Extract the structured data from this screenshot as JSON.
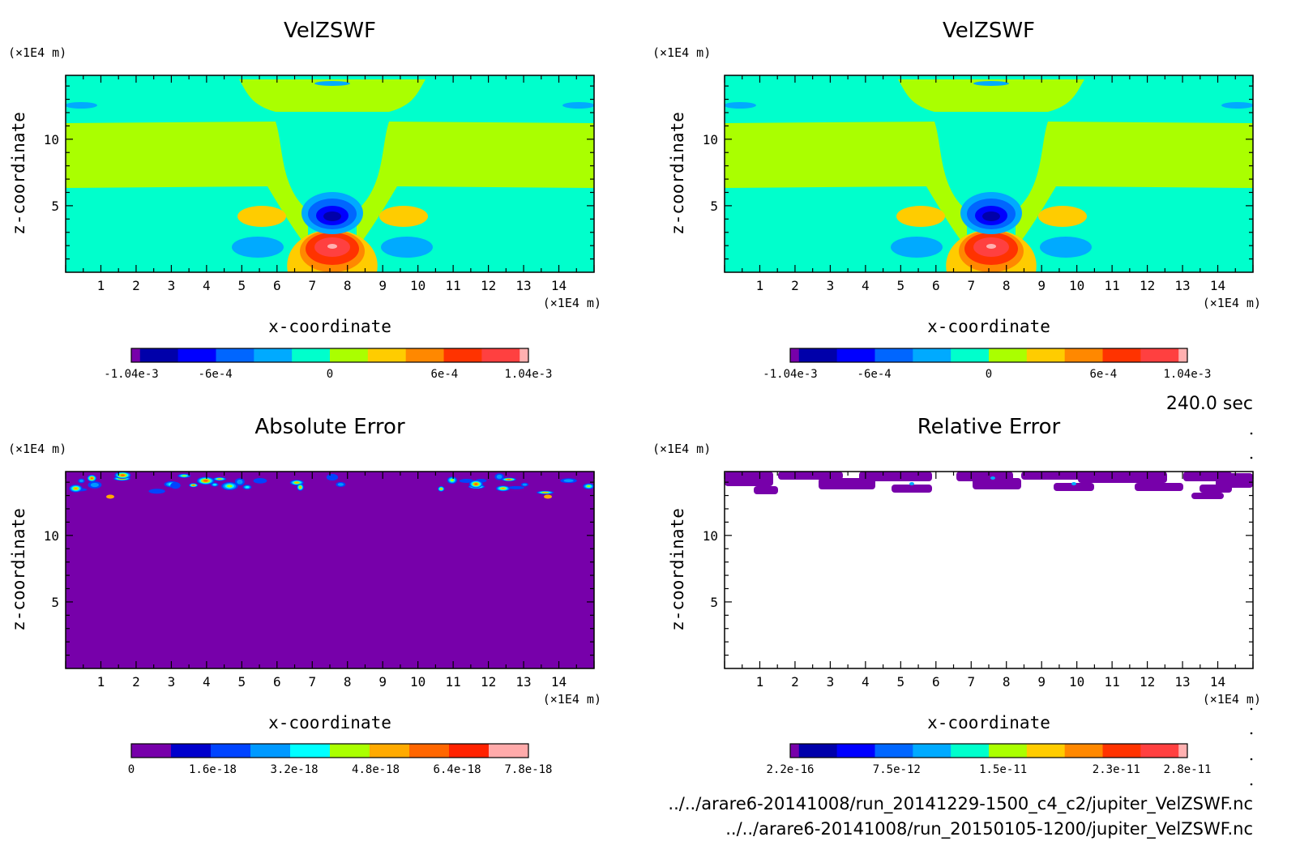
{
  "time_label": "240.0 sec",
  "footer": {
    "file1": "../../arare6-20141008/run_20141229-1500_c4_c2/jupiter_VelZSWF.nc",
    "file2": "../../arare6-20141008/run_20150105-1200/jupiter_VelZSWF.nc"
  },
  "colors": {
    "velocity": [
      "#7700aa",
      "#0000aa",
      "#0000ff",
      "#0066ff",
      "#00aaff",
      "#00ffcc",
      "#aaff00",
      "#ffcc00",
      "#ff8800",
      "#ff3300",
      "#ff4040",
      "#ffb0b0"
    ],
    "abs_error": [
      "#7700aa",
      "#0000cc",
      "#0044ff",
      "#0099ff",
      "#00ffff",
      "#aaff00",
      "#ffaa00",
      "#ff6600",
      "#ff2200",
      "#ffaaaa"
    ],
    "rel_error": [
      "#7700aa",
      "#0000aa",
      "#0000ff",
      "#0066ff",
      "#00aaff",
      "#00ffcc",
      "#aaff00",
      "#ffcc00",
      "#ff8800",
      "#ff3300",
      "#ff4040",
      "#ffb0b0"
    ]
  },
  "chart_data": [
    {
      "type": "heatmap",
      "title": "VelZSWF",
      "xlabel": "x-coordinate",
      "ylabel": "z-coordinate",
      "x_unit": "(×1E4 m)",
      "y_unit": "(×1E4 m)",
      "xlim": [
        0,
        15
      ],
      "ylim": [
        0,
        14.8
      ],
      "x_ticks": [
        1,
        2,
        3,
        4,
        5,
        6,
        7,
        8,
        9,
        10,
        11,
        12,
        13,
        14
      ],
      "y_ticks": [
        5,
        10
      ],
      "colorbar_range": [
        -0.00104,
        0.00104
      ],
      "colorbar_labels": [
        "-1.04e-3",
        "-6e-4",
        "0",
        "6e-4",
        "1.04e-3"
      ],
      "colorbar_label_fractions": [
        0.0,
        0.2115,
        0.5,
        0.7885,
        1.0
      ]
    },
    {
      "type": "heatmap",
      "title": "VelZSWF",
      "xlabel": "x-coordinate",
      "ylabel": "z-coordinate",
      "x_unit": "(×1E4 m)",
      "y_unit": "(×1E4 m)",
      "xlim": [
        0,
        15
      ],
      "ylim": [
        0,
        14.8
      ],
      "x_ticks": [
        1,
        2,
        3,
        4,
        5,
        6,
        7,
        8,
        9,
        10,
        11,
        12,
        13,
        14
      ],
      "y_ticks": [
        5,
        10
      ],
      "colorbar_range": [
        -0.00104,
        0.00104
      ],
      "colorbar_labels": [
        "-1.04e-3",
        "-6e-4",
        "0",
        "6e-4",
        "1.04e-3"
      ],
      "colorbar_label_fractions": [
        0.0,
        0.2115,
        0.5,
        0.7885,
        1.0
      ]
    },
    {
      "type": "heatmap",
      "title": "Absolute Error",
      "xlabel": "x-coordinate",
      "ylabel": "z-coordinate",
      "x_unit": "(×1E4 m)",
      "y_unit": "(×1E4 m)",
      "xlim": [
        0,
        15
      ],
      "ylim": [
        0,
        14.8
      ],
      "x_ticks": [
        1,
        2,
        3,
        4,
        5,
        6,
        7,
        8,
        9,
        10,
        11,
        12,
        13,
        14
      ],
      "y_ticks": [
        5,
        10
      ],
      "colorbar_range": [
        0,
        7.8e-18
      ],
      "colorbar_labels": [
        "0",
        "1.6e-18",
        "3.2e-18",
        "4.8e-18",
        "6.4e-18",
        "7.8e-18"
      ],
      "colorbar_label_fractions": [
        0.0,
        0.2051,
        0.4103,
        0.6154,
        0.8205,
        1.0
      ]
    },
    {
      "type": "heatmap",
      "title": "Relative Error",
      "xlabel": "x-coordinate",
      "ylabel": "z-coordinate",
      "x_unit": "(×1E4 m)",
      "y_unit": "(×1E4 m)",
      "xlim": [
        0,
        15
      ],
      "ylim": [
        0,
        14.8
      ],
      "x_ticks": [
        1,
        2,
        3,
        4,
        5,
        6,
        7,
        8,
        9,
        10,
        11,
        12,
        13,
        14
      ],
      "y_ticks": [
        5,
        10
      ],
      "colorbar_range": [
        2.2e-16,
        2.8e-11
      ],
      "colorbar_labels": [
        "2.2e-16",
        "7.5e-12",
        "1.5e-11",
        "2.3e-11",
        "2.8e-11"
      ],
      "colorbar_label_fractions": [
        0.0,
        0.268,
        0.536,
        0.821,
        1.0
      ]
    }
  ]
}
